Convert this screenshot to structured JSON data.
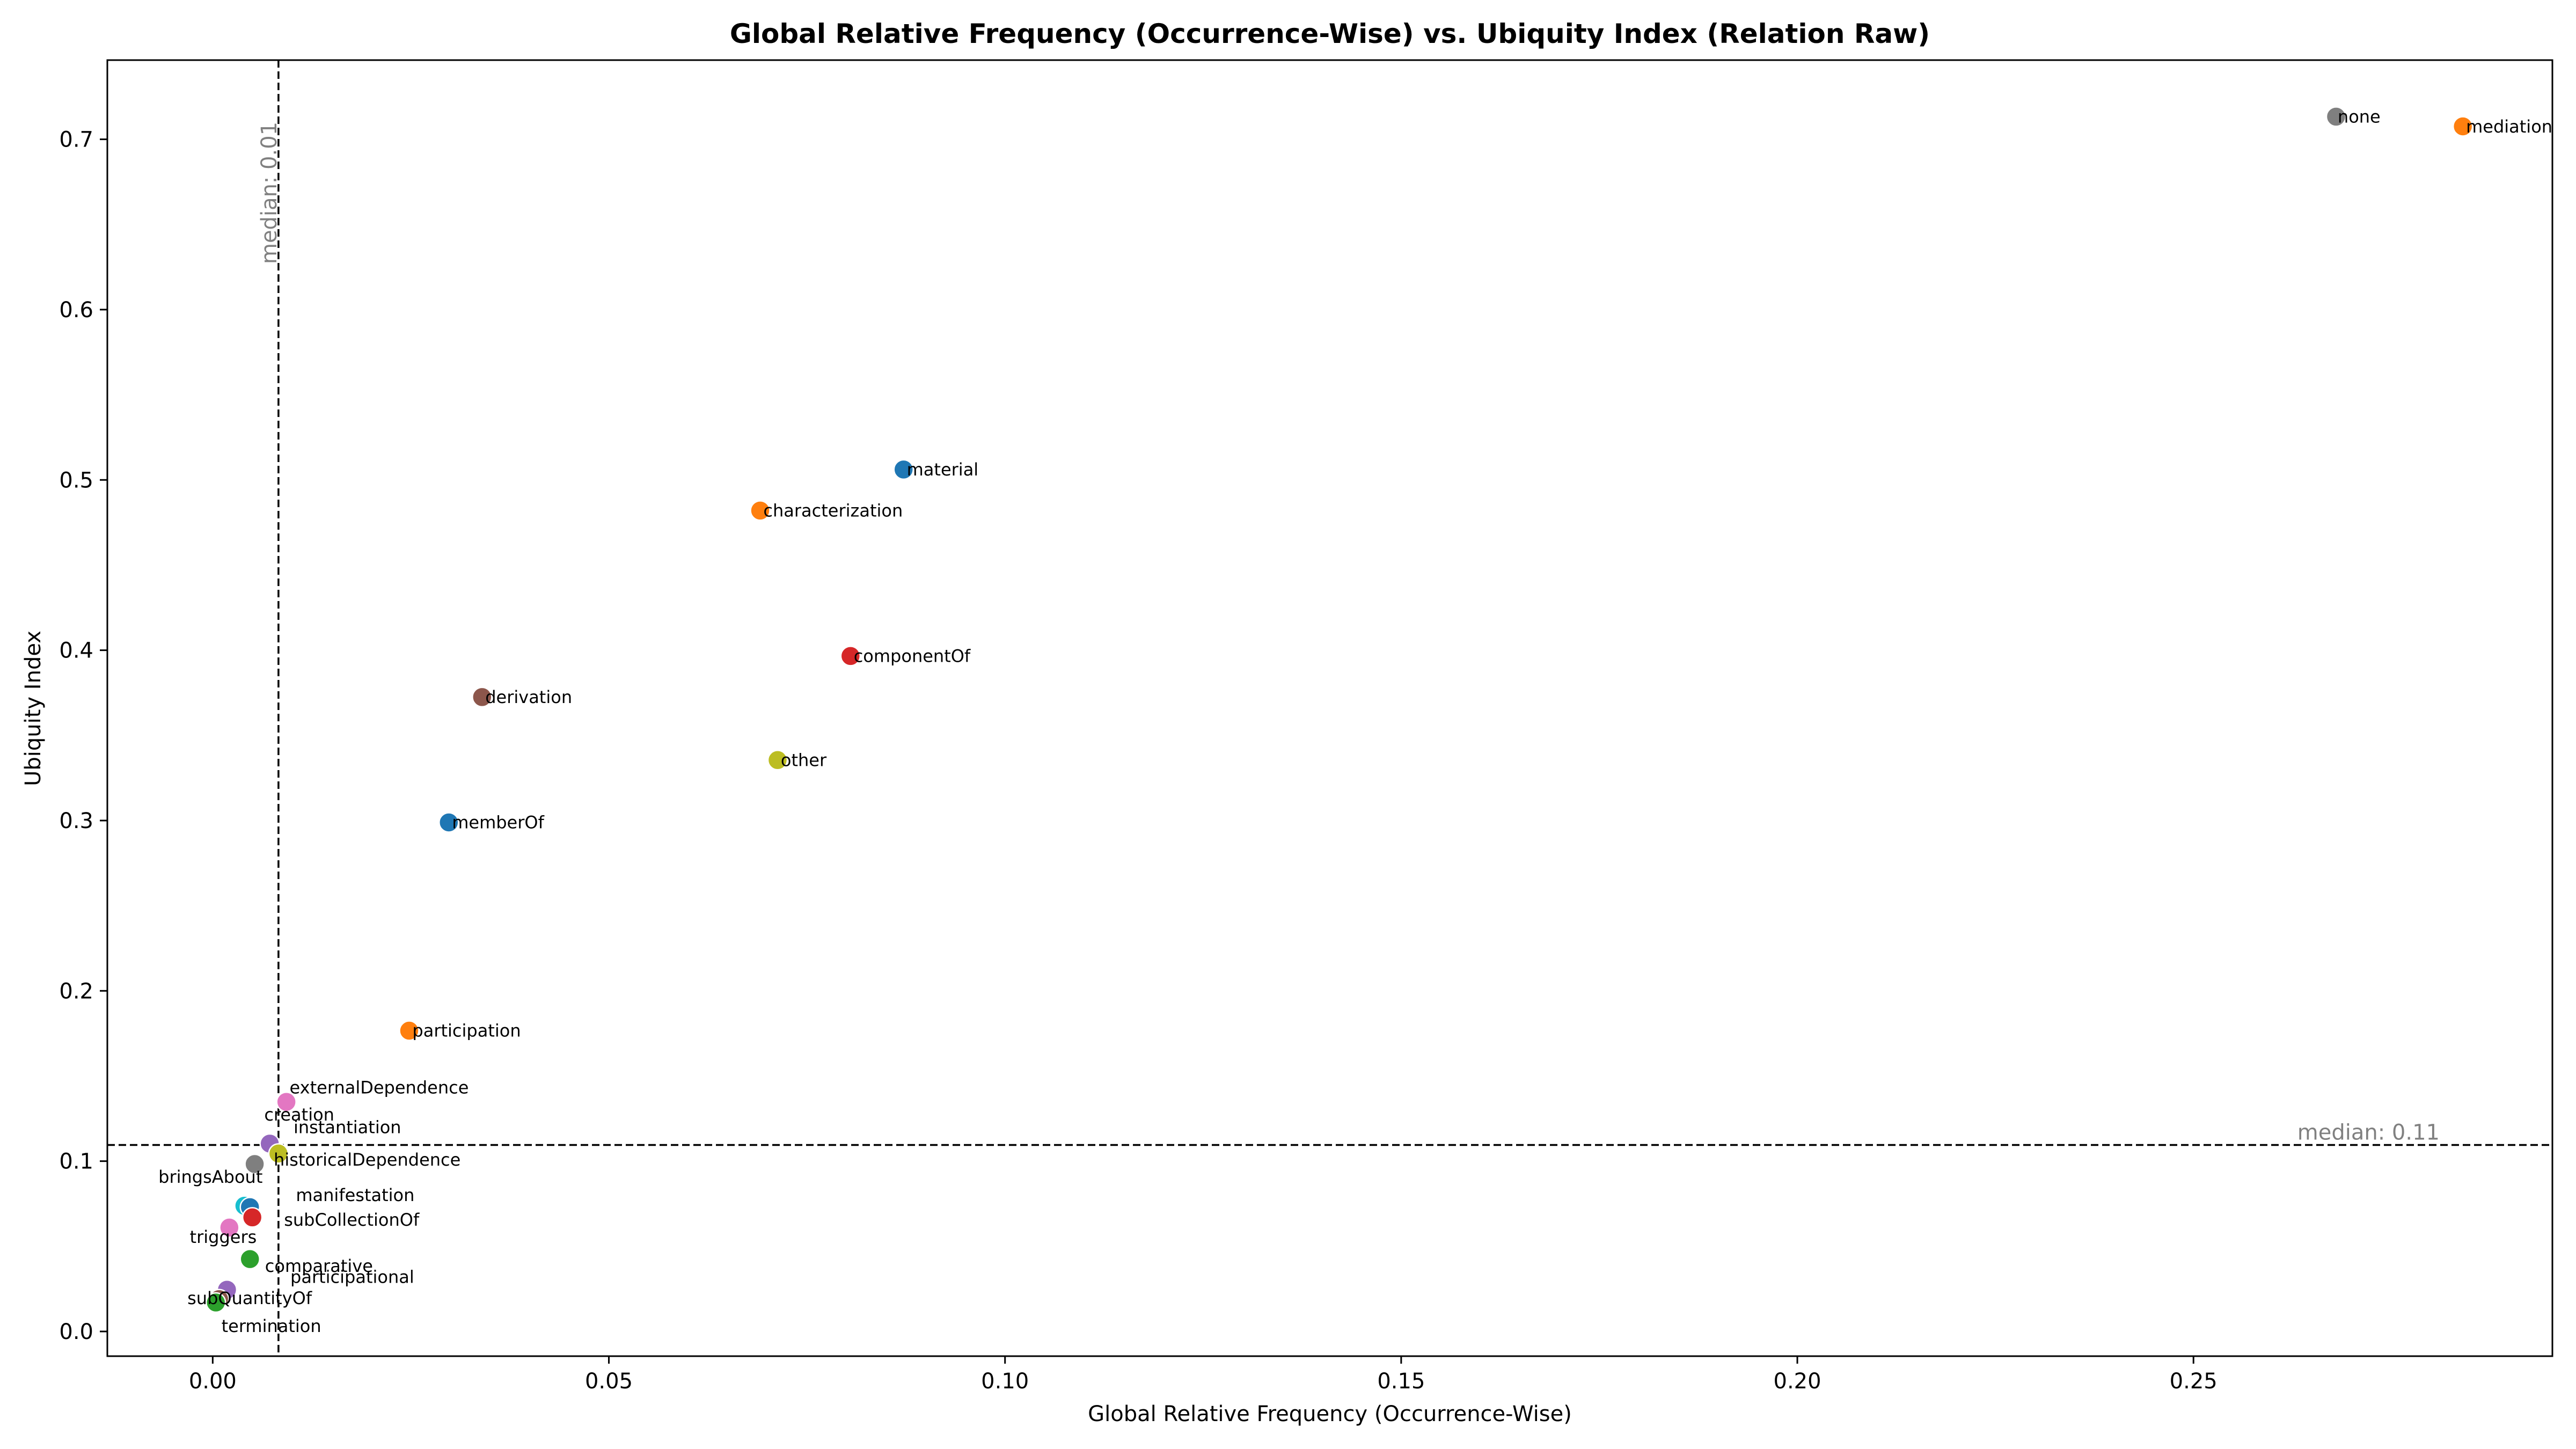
{
  "chart_data": {
    "type": "scatter",
    "title": "Global Relative Frequency (Occurrence-Wise) vs. Ubiquity Index (Relation Raw)",
    "xlabel": "Global Relative Frequency (Occurrence-Wise)",
    "ylabel": "Ubiquity Index",
    "xlim": [
      -0.0133,
      0.2953
    ],
    "ylim": [
      -0.0145,
      0.7465
    ],
    "xticks": [
      0.0,
      0.05,
      0.1,
      0.15,
      0.2,
      0.25
    ],
    "xtick_labels": [
      "0.00",
      "0.05",
      "0.10",
      "0.15",
      "0.20",
      "0.25"
    ],
    "yticks": [
      0.0,
      0.1,
      0.2,
      0.3,
      0.4,
      0.5,
      0.6,
      0.7
    ],
    "ytick_labels": [
      "0.0",
      "0.1",
      "0.2",
      "0.3",
      "0.4",
      "0.5",
      "0.6",
      "0.7"
    ],
    "grid": false,
    "legend": "none",
    "reference_lines": [
      {
        "orientation": "vertical",
        "value": 0.0083,
        "label": "median: 0.01",
        "color": "#808080"
      },
      {
        "orientation": "horizontal",
        "value": 0.1095,
        "label": "median: 0.11",
        "color": "#808080"
      }
    ],
    "points": [
      {
        "label": "none",
        "x": 0.268,
        "y": 0.7133,
        "color": "#7f7f7f",
        "label_anchor": "start",
        "label_dx": 0.0002,
        "label_dy": -0.0035
      },
      {
        "label": "mediation",
        "x": 0.284,
        "y": 0.7076,
        "color": "#ff7f0e",
        "label_anchor": "start",
        "label_dx": 0.0004,
        "label_dy": -0.0037
      },
      {
        "label": "material",
        "x": 0.0872,
        "y": 0.5061,
        "color": "#1f77b4",
        "label_anchor": "start",
        "label_dx": 0.0004,
        "label_dy": -0.0035
      },
      {
        "label": "characterization",
        "x": 0.0691,
        "y": 0.482,
        "color": "#ff7f0e",
        "label_anchor": "start",
        "label_dx": 0.0004,
        "label_dy": -0.0035
      },
      {
        "label": "componentOf",
        "x": 0.0805,
        "y": 0.3966,
        "color": "#d62728",
        "label_anchor": "start",
        "label_dx": 0.0004,
        "label_dy": -0.0035
      },
      {
        "label": "derivation",
        "x": 0.034,
        "y": 0.3725,
        "color": "#8c564b",
        "label_anchor": "start",
        "label_dx": 0.0004,
        "label_dy": -0.0035
      },
      {
        "label": "other",
        "x": 0.0713,
        "y": 0.3355,
        "color": "#bcbd22",
        "label_anchor": "start",
        "label_dx": 0.0004,
        "label_dy": -0.0035
      },
      {
        "label": "memberOf",
        "x": 0.0298,
        "y": 0.2989,
        "color": "#1f77b4",
        "label_anchor": "start",
        "label_dx": 0.0004,
        "label_dy": -0.0035
      },
      {
        "label": "participation",
        "x": 0.0248,
        "y": 0.1766,
        "color": "#ff7f0e",
        "label_anchor": "start",
        "label_dx": 0.0004,
        "label_dy": -0.0035
      },
      {
        "label": "externalDependence",
        "x": 0.0093,
        "y": 0.1348,
        "color": "#e377c2",
        "label_anchor": "start",
        "label_dx": 0.0004,
        "label_dy": 0.005
      },
      {
        "label": "creation",
        "x": 0.0072,
        "y": 0.1103,
        "color": "#9467bd",
        "label_anchor": "start",
        "label_dx": -0.0007,
        "label_dy": 0.0135
      },
      {
        "label": "instantiation",
        "x": 0.0083,
        "y": 0.1045,
        "color": "#bcbd22",
        "label_anchor": "start",
        "label_dx": 0.0019,
        "label_dy": 0.012
      },
      {
        "label": "historicalDependence",
        "x": 0.0053,
        "y": 0.0983,
        "color": "#7f7f7f",
        "label_anchor": "start",
        "label_dx": 0.0024,
        "label_dy": -0.001
      },
      {
        "label": "bringsAbout",
        "x": 0.004,
        "y": 0.0738,
        "color": "#17becf",
        "label_anchor": "end",
        "label_dx": 0.0023,
        "label_dy": 0.0135
      },
      {
        "label": "manifestation",
        "x": 0.0047,
        "y": 0.073,
        "color": "#1f77b4",
        "label_anchor": "start",
        "label_dx": 0.0058,
        "label_dy": 0.0035
      },
      {
        "label": "subCollectionOf",
        "x": 0.005,
        "y": 0.067,
        "color": "#d62728",
        "label_anchor": "start",
        "label_dx": 0.004,
        "label_dy": -0.005
      },
      {
        "label": "triggers",
        "x": 0.0021,
        "y": 0.061,
        "color": "#e377c2",
        "label_anchor": "start",
        "label_dx": -0.005,
        "label_dy": -0.009
      },
      {
        "label": "comparative",
        "x": 0.0047,
        "y": 0.0425,
        "color": "#2ca02c",
        "label_anchor": "start",
        "label_dx": 0.0019,
        "label_dy": -0.0075
      },
      {
        "label": "participational",
        "x": 0.0018,
        "y": 0.0245,
        "color": "#9467bd",
        "label_anchor": "start",
        "label_dx": 0.008,
        "label_dy": 0.004
      },
      {
        "label": "subQuantityOf",
        "x": 0.0008,
        "y": 0.019,
        "color": "#8c564b",
        "label_anchor": "start",
        "label_dx": -0.004,
        "label_dy": -0.003
      },
      {
        "label": "termination",
        "x": 0.0004,
        "y": 0.017,
        "color": "#2ca02c",
        "label_anchor": "start",
        "label_dx": 0.0007,
        "label_dy": -0.0173
      }
    ]
  }
}
